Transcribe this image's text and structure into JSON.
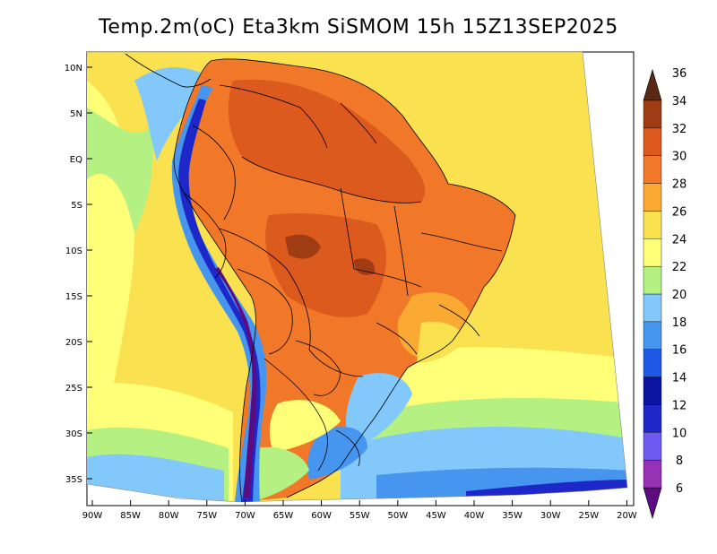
{
  "title": "Temp.2m(oC) Eta3km SiSMOM 15h 15Z13SEP2025",
  "lat_ticks": [
    "10N",
    "5N",
    "EQ",
    "5S",
    "10S",
    "15S",
    "20S",
    "25S",
    "30S",
    "35S"
  ],
  "lon_ticks": [
    "90W",
    "85W",
    "80W",
    "75W",
    "70W",
    "65W",
    "60W",
    "55W",
    "50W",
    "45W",
    "40W",
    "35W",
    "30W",
    "25W",
    "20W"
  ],
  "colorbar": {
    "labels": [
      "6",
      "8",
      "10",
      "12",
      "14",
      "16",
      "18",
      "20",
      "22",
      "24",
      "26",
      "28",
      "30",
      "32",
      "34",
      "36"
    ],
    "colors": [
      "#5c0c80",
      "#9632b4",
      "#6e5af0",
      "#1e28c8",
      "#0a14a0",
      "#1e5ae6",
      "#4696f0",
      "#82c8fa",
      "#b4f082",
      "#ffff78",
      "#fae150",
      "#faaa32",
      "#f07828",
      "#dc5a1e",
      "#a03c14",
      "#5a2814"
    ]
  },
  "map_colors": {
    "ocean_warm": "#fae150",
    "ocean_cool": "#ffff78",
    "ocean_cooler": "#b4f082",
    "ocean_cold": "#82c8fa",
    "land_hot": "#f07828",
    "land_hotter": "#dc5a1e",
    "land_warm": "#faaa32",
    "andes_cold": "#1e28c8",
    "andes_colder": "#5c0c80"
  }
}
